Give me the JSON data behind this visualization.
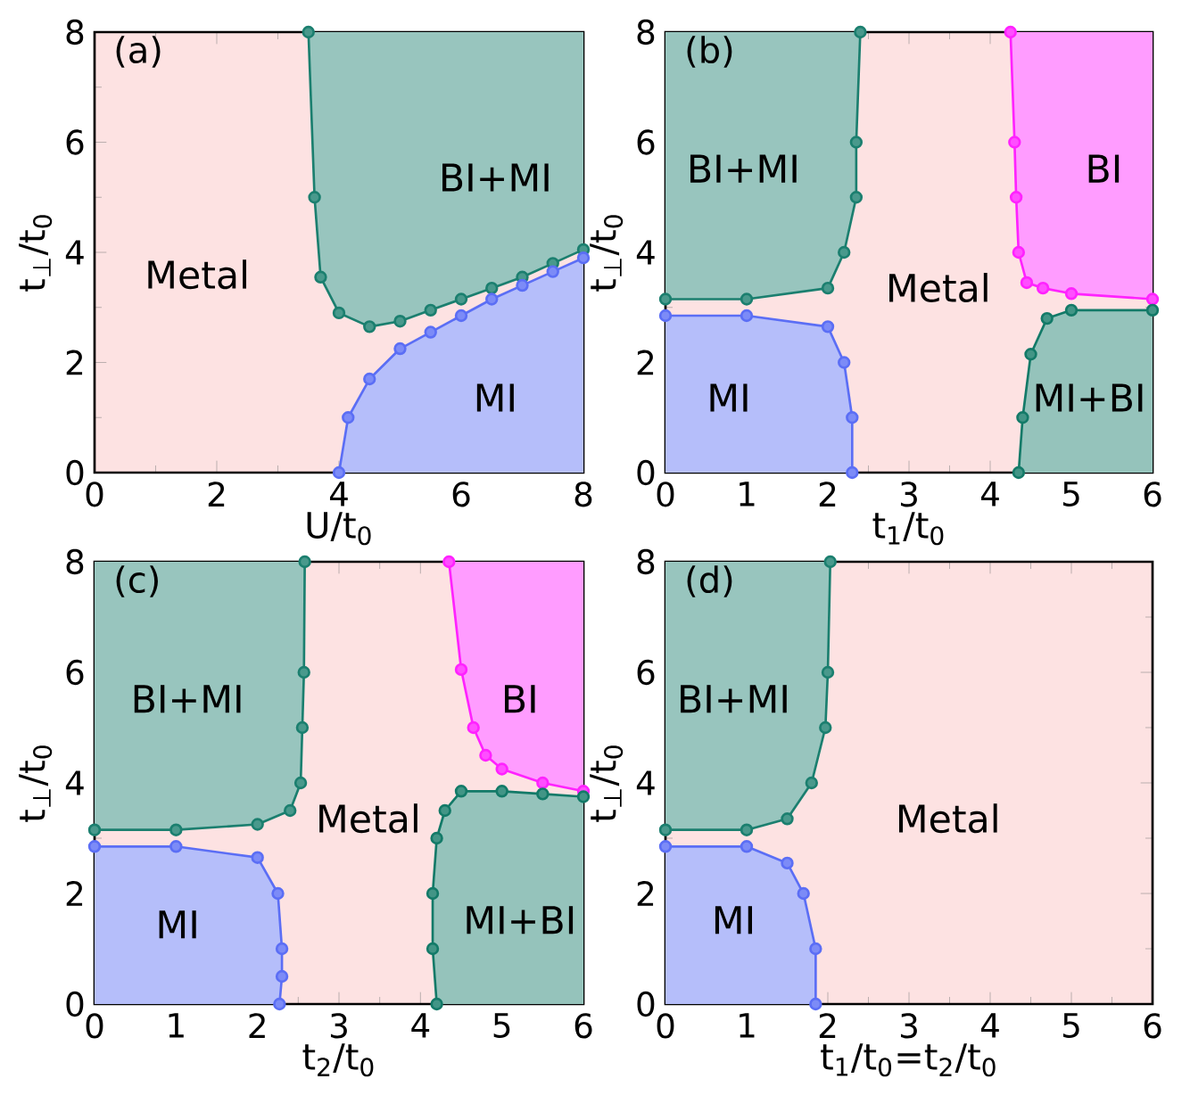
{
  "chart_data": [
    {
      "type": "line",
      "title": "(a)",
      "xlabel": "U/t$_{0}$",
      "ylabel": "t$_{⊥}$/t$_{0}$",
      "xlim": [
        0,
        8
      ],
      "ylim": [
        0,
        8
      ],
      "xticks": [
        0,
        2,
        4,
        6,
        8
      ],
      "yticks": [
        0,
        2,
        4,
        6,
        8
      ],
      "marker": "circle",
      "series": [
        {
          "color": "#1b7f6f",
          "x": [
            3.5,
            3.6,
            3.7,
            4.0,
            4.5,
            5,
            5.5,
            6,
            6.5,
            7,
            7.5,
            8
          ],
          "values": [
            8,
            5,
            3.55,
            2.9,
            2.65,
            2.75,
            2.95,
            3.15,
            3.35,
            3.55,
            3.8,
            4.05
          ]
        },
        {
          "color": "#5b6ef5",
          "x": [
            4,
            4.15,
            4.5,
            5,
            5.5,
            6,
            6.5,
            7,
            7.5,
            8
          ],
          "values": [
            0,
            1.0,
            1.7,
            2.25,
            2.55,
            2.85,
            3.15,
            3.4,
            3.65,
            3.9
          ]
        }
      ],
      "annotations": [
        "Metal",
        "BI+MI",
        "MI"
      ]
    },
    {
      "type": "line",
      "title": "(b)",
      "xlabel": "t$_{1}$/t$_{0}$",
      "ylabel": "t$_{⊥}$/t$_{0}$",
      "xlim": [
        0,
        6
      ],
      "ylim": [
        0,
        8
      ],
      "xticks": [
        0,
        1,
        2,
        3,
        4,
        5,
        6
      ],
      "yticks": [
        0,
        2,
        4,
        6,
        8
      ],
      "marker": "circle",
      "series": [
        {
          "color": "#1b7f6f",
          "x": [
            0,
            1,
            2,
            2.2,
            2.35,
            2.35,
            2.4
          ],
          "values": [
            3.15,
            3.15,
            3.35,
            4,
            5,
            6,
            8
          ]
        },
        {
          "color": "#5b6ef5",
          "x": [
            0,
            1,
            2,
            2.2,
            2.3,
            2.3
          ],
          "values": [
            2.85,
            2.85,
            2.65,
            2,
            1,
            0
          ]
        },
        {
          "color": "#ff22ff",
          "x": [
            4.25,
            4.3,
            4.32,
            4.35,
            4.45,
            4.65,
            5,
            6
          ],
          "values": [
            8,
            6,
            5,
            4,
            3.45,
            3.35,
            3.25,
            3.15
          ]
        },
        {
          "color": "#137a68",
          "x": [
            4.35,
            4.4,
            4.5,
            4.7,
            5,
            6
          ],
          "values": [
            0,
            1,
            2.15,
            2.8,
            2.95,
            2.95
          ]
        }
      ],
      "annotations": [
        "BI+MI",
        "MI",
        "Metal",
        "BI",
        "MI+BI"
      ]
    },
    {
      "type": "line",
      "title": "(c)",
      "xlabel": "t$_{2}$/t$_{0}$",
      "ylabel": "t$_{⊥}$/t$_{0}$",
      "xlim": [
        0,
        6
      ],
      "ylim": [
        0,
        8
      ],
      "xticks": [
        0,
        1,
        2,
        3,
        4,
        5,
        6
      ],
      "yticks": [
        0,
        2,
        4,
        6,
        8
      ],
      "marker": "circle",
      "series": [
        {
          "color": "#1b7f6f",
          "x": [
            0,
            1,
            2,
            2.4,
            2.53,
            2.55,
            2.57,
            2.58
          ],
          "values": [
            3.15,
            3.15,
            3.25,
            3.5,
            4,
            5,
            6,
            8
          ]
        },
        {
          "color": "#5b6ef5",
          "x": [
            0,
            1,
            2,
            2.25,
            2.3,
            2.3,
            2.27
          ],
          "values": [
            2.85,
            2.85,
            2.65,
            2,
            1,
            0.5,
            0
          ]
        },
        {
          "color": "#ff22ff",
          "x": [
            4.35,
            4.5,
            4.65,
            4.8,
            5,
            5.5,
            6
          ],
          "values": [
            8,
            6.05,
            5,
            4.5,
            4.25,
            4,
            3.85
          ]
        },
        {
          "color": "#137a68",
          "x": [
            4.2,
            4.15,
            4.15,
            4.2,
            4.3,
            4.5,
            5,
            5.5,
            6
          ],
          "values": [
            0,
            1,
            2,
            3,
            3.5,
            3.85,
            3.85,
            3.8,
            3.75
          ]
        }
      ],
      "annotations": [
        "BI+MI",
        "MI",
        "Metal",
        "BI",
        "MI+BI"
      ]
    },
    {
      "type": "line",
      "title": "(d)",
      "xlabel": "t$_{1}$/t$_{0}$=t$_{2}$/t$_{0}$",
      "ylabel": "t$_{⊥}$/t$_{0}$",
      "xlim": [
        0,
        6
      ],
      "ylim": [
        0,
        8
      ],
      "xticks": [
        0,
        1,
        2,
        3,
        4,
        5,
        6
      ],
      "yticks": [
        0,
        2,
        4,
        6,
        8
      ],
      "marker": "circle",
      "series": [
        {
          "color": "#1b7f6f",
          "x": [
            0,
            1,
            1.5,
            1.8,
            1.97,
            2,
            2.03
          ],
          "values": [
            3.15,
            3.15,
            3.35,
            4,
            5,
            6,
            8
          ]
        },
        {
          "color": "#5b6ef5",
          "x": [
            0,
            1,
            1.5,
            1.7,
            1.85,
            1.85
          ],
          "values": [
            2.85,
            2.85,
            2.55,
            2,
            1,
            0
          ]
        }
      ],
      "annotations": [
        "BI+MI",
        "MI",
        "Metal"
      ]
    }
  ]
}
